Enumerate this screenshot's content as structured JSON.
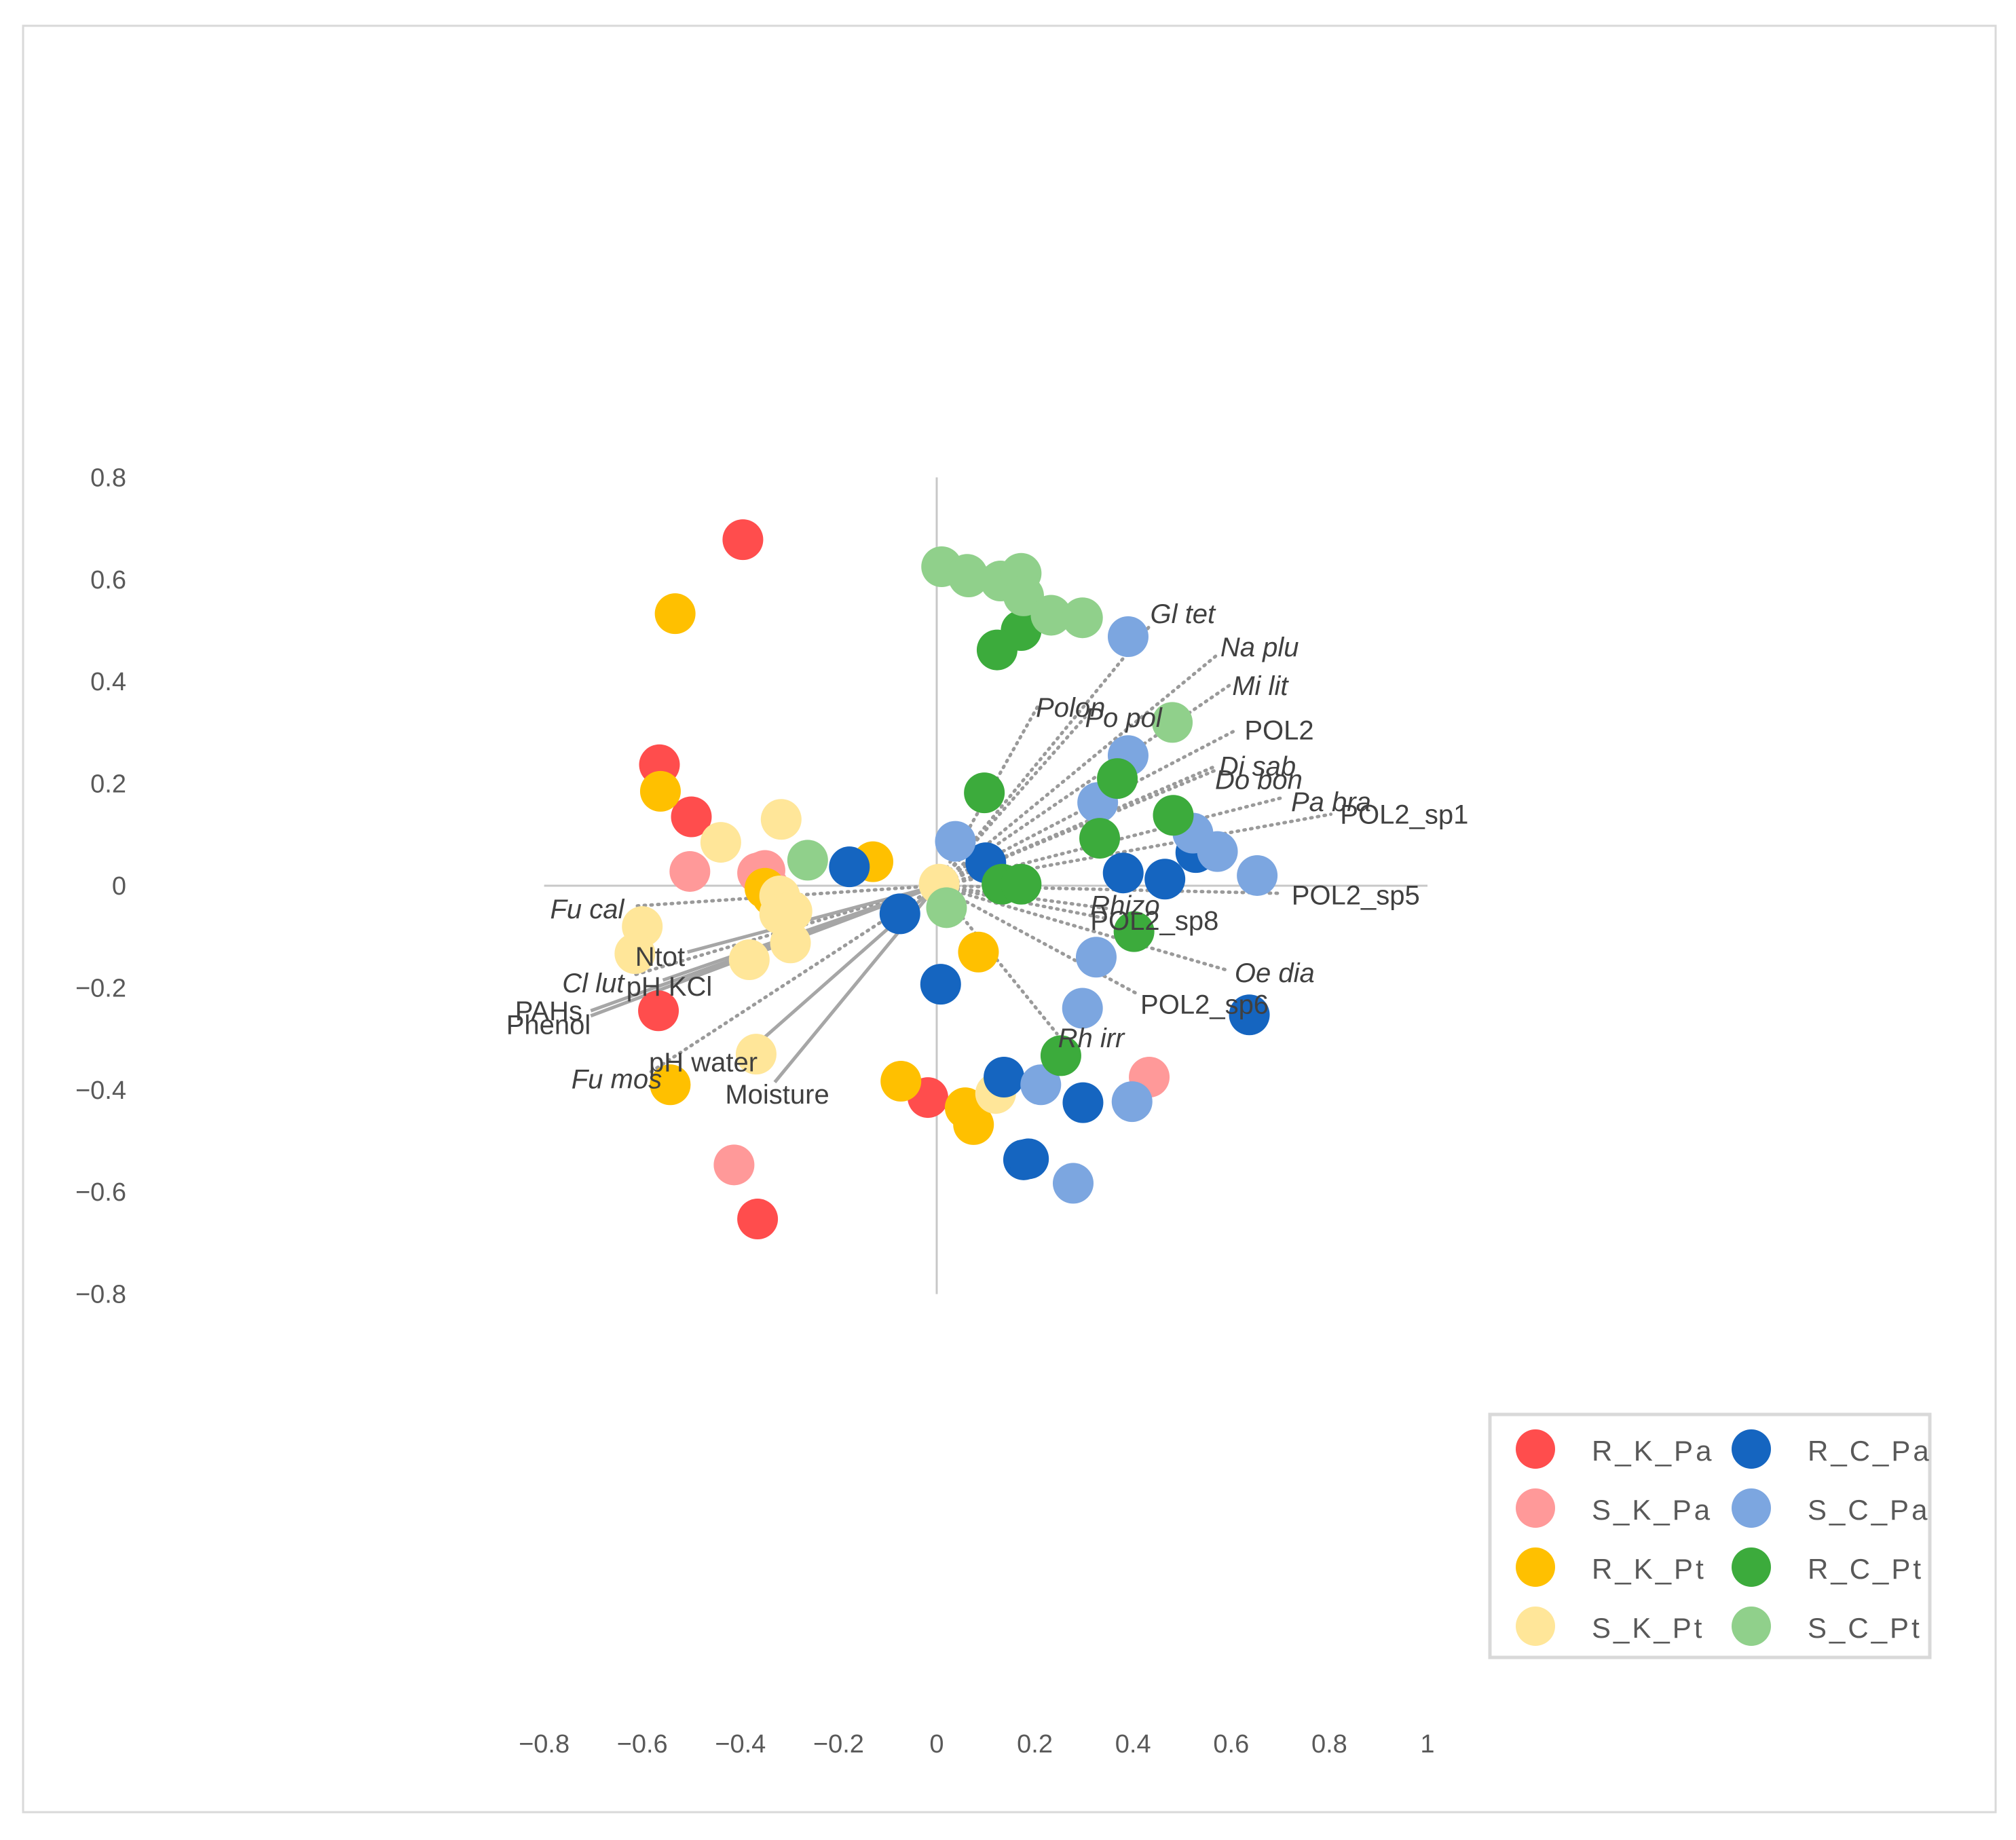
{
  "chart_data": {
    "type": "scatter",
    "title": "",
    "xlabel": "",
    "ylabel": "",
    "xlim": [
      -0.8,
      1
    ],
    "ylim": [
      -0.8,
      0.8
    ],
    "x_ticks": [
      "−0.8",
      "−0.6",
      "−0.4",
      "−0.2",
      "0",
      "0.2",
      "0.4",
      "0.6",
      "0.8",
      "1"
    ],
    "y_ticks": [
      "0.8",
      "0.6",
      "0.4",
      "0.2",
      "0",
      "−0.2",
      "−0.4",
      "−0.6",
      "−0.8"
    ],
    "grid": false,
    "legend_position": "bottom-right",
    "series": [
      {
        "name": "R_K_Pa",
        "color": "#ff4d4d",
        "points": [
          [
            -0.395,
            0.678
          ],
          [
            -0.565,
            0.237
          ],
          [
            -0.5,
            0.135
          ],
          [
            -0.567,
            -0.245
          ],
          [
            -0.365,
            -0.653
          ],
          [
            -0.018,
            -0.415
          ]
        ]
      },
      {
        "name": "S_K_Pa",
        "color": "#ff9999",
        "points": [
          [
            -0.503,
            0.028
          ],
          [
            -0.365,
            0.025
          ],
          [
            -0.358,
            0.027
          ],
          [
            -0.35,
            0.03
          ],
          [
            -0.342,
            -0.003
          ],
          [
            -0.413,
            -0.547
          ],
          [
            0.433,
            -0.375
          ]
        ]
      },
      {
        "name": "R_K_Pt",
        "color": "#ffc000",
        "points": [
          [
            -0.533,
            0.533
          ],
          [
            -0.563,
            0.185
          ],
          [
            -0.13,
            0.047
          ],
          [
            -0.35,
            -0.005
          ],
          [
            -0.335,
            -0.02
          ],
          [
            -0.543,
            -0.39
          ],
          [
            -0.073,
            -0.383
          ],
          [
            0.085,
            -0.13
          ],
          [
            0.058,
            -0.435
          ],
          [
            0.075,
            -0.468
          ]
        ]
      },
      {
        "name": "S_K_Pt",
        "color": "#ffe699",
        "points": [
          [
            -0.317,
            0.13
          ],
          [
            -0.44,
            0.085
          ],
          [
            -0.32,
            -0.02
          ],
          [
            -0.32,
            -0.055
          ],
          [
            -0.295,
            -0.05
          ],
          [
            -0.298,
            -0.112
          ],
          [
            -0.6,
            -0.08
          ],
          [
            -0.615,
            -0.133
          ],
          [
            -0.382,
            -0.145
          ],
          [
            -0.368,
            -0.33
          ],
          [
            0.12,
            -0.407
          ],
          [
            0.005,
            0.003
          ]
        ]
      },
      {
        "name": "R_C_Pa",
        "color": "#1565c0",
        "points": [
          [
            -0.178,
            0.037
          ],
          [
            -0.075,
            -0.055
          ],
          [
            0.1,
            0.045
          ],
          [
            0.38,
            0.025
          ],
          [
            0.465,
            0.013
          ],
          [
            0.528,
            0.065
          ],
          [
            0.637,
            -0.253
          ],
          [
            0.008,
            -0.193
          ],
          [
            0.137,
            -0.375
          ],
          [
            0.298,
            -0.425
          ],
          [
            0.177,
            -0.537
          ],
          [
            0.187,
            -0.535
          ]
        ]
      },
      {
        "name": "S_C_Pa",
        "color": "#7ca6e0",
        "points": [
          [
            0.038,
            0.087
          ],
          [
            0.39,
            0.488
          ],
          [
            0.39,
            0.255
          ],
          [
            0.328,
            0.163
          ],
          [
            0.522,
            0.103
          ],
          [
            0.572,
            0.067
          ],
          [
            0.653,
            0.02
          ],
          [
            0.325,
            -0.14
          ],
          [
            0.297,
            -0.24
          ],
          [
            0.212,
            -0.39
          ],
          [
            0.398,
            -0.423
          ],
          [
            0.278,
            -0.583
          ]
        ]
      },
      {
        "name": "R_C_Pt",
        "color": "#3cab3c",
        "points": [
          [
            0.172,
            0.5
          ],
          [
            0.123,
            0.462
          ],
          [
            0.097,
            0.182
          ],
          [
            0.368,
            0.21
          ],
          [
            0.482,
            0.138
          ],
          [
            0.332,
            0.093
          ],
          [
            0.133,
            0.003
          ],
          [
            0.172,
            0.003
          ],
          [
            0.402,
            -0.09
          ],
          [
            0.253,
            -0.333
          ]
        ]
      },
      {
        "name": "S_C_Pt",
        "color": "#90d08b",
        "points": [
          [
            0.01,
            0.625
          ],
          [
            0.062,
            0.61
          ],
          [
            0.065,
            0.605
          ],
          [
            0.13,
            0.597
          ],
          [
            0.172,
            0.612
          ],
          [
            0.177,
            0.568
          ],
          [
            0.233,
            0.53
          ],
          [
            0.297,
            0.525
          ],
          [
            0.48,
            0.32
          ],
          [
            -0.263,
            0.05
          ],
          [
            0.02,
            -0.043
          ]
        ]
      }
    ],
    "species_vectors": [
      {
        "label": "Gl tet",
        "italic": true,
        "end": [
          0.435,
          0.51
        ],
        "label_pos": [
          0.435,
          0.533
        ],
        "anchor": "start"
      },
      {
        "label": "Na plu",
        "italic": true,
        "end": [
          0.575,
          0.455
        ],
        "label_pos": [
          0.578,
          0.468
        ],
        "anchor": "start"
      },
      {
        "label": "Mi lit",
        "italic": true,
        "end": [
          0.6,
          0.395
        ],
        "label_pos": [
          0.602,
          0.392
        ],
        "anchor": "start"
      },
      {
        "label": "Polon",
        "italic": true,
        "end": [
          0.205,
          0.35
        ],
        "label_pos": [
          0.202,
          0.35
        ],
        "anchor": "start"
      },
      {
        "label": "Po pol",
        "italic": true,
        "end": [
          0.302,
          0.33
        ],
        "label_pos": [
          0.302,
          0.33
        ],
        "anchor": "start"
      },
      {
        "label": "POL2",
        "italic": false,
        "end": [
          0.61,
          0.305
        ],
        "label_pos": [
          0.627,
          0.305
        ],
        "anchor": "start"
      },
      {
        "label": "Di sab",
        "italic": true,
        "end": [
          0.57,
          0.235
        ],
        "label_pos": [
          0.575,
          0.235
        ],
        "anchor": "start"
      },
      {
        "label": "Do bon",
        "italic": true,
        "end": [
          0.565,
          0.225
        ],
        "label_pos": [
          0.567,
          0.208
        ],
        "anchor": "start"
      },
      {
        "label": "Pa bra",
        "italic": true,
        "end": [
          0.702,
          0.172
        ],
        "label_pos": [
          0.722,
          0.165
        ],
        "anchor": "start"
      },
      {
        "label": "POL2_sp1",
        "italic": false,
        "end": [
          0.803,
          0.14
        ],
        "label_pos": [
          0.822,
          0.14
        ],
        "anchor": "start"
      },
      {
        "label": "POL2_sp5",
        "italic": false,
        "end": [
          0.705,
          -0.015
        ],
        "label_pos": [
          0.723,
          -0.018
        ],
        "anchor": "start"
      },
      {
        "label": "Rhizo",
        "italic": true,
        "end": [
          0.35,
          -0.045
        ],
        "label_pos": [
          0.313,
          -0.038
        ],
        "anchor": "start"
      },
      {
        "label": "POL2_sp8",
        "italic": false,
        "end": [
          0.35,
          -0.065
        ],
        "label_pos": [
          0.313,
          -0.068
        ],
        "anchor": "start"
      },
      {
        "label": "Oe dia",
        "italic": true,
        "end": [
          0.59,
          -0.165
        ],
        "label_pos": [
          0.607,
          -0.17
        ],
        "anchor": "start"
      },
      {
        "label": "POL2_sp6",
        "italic": false,
        "end": [
          0.405,
          -0.21
        ],
        "label_pos": [
          0.415,
          -0.232
        ],
        "anchor": "start"
      },
      {
        "label": "Rh irr",
        "italic": true,
        "end": [
          0.245,
          -0.29
        ],
        "label_pos": [
          0.247,
          -0.298
        ],
        "anchor": "start"
      },
      {
        "label": "Fu cal",
        "italic": true,
        "end": [
          -0.618,
          -0.04
        ],
        "label_pos": [
          -0.637,
          -0.045
        ],
        "anchor": "end"
      },
      {
        "label": "Cl lut",
        "italic": true,
        "end": [
          -0.617,
          -0.175
        ],
        "label_pos": [
          -0.637,
          -0.19
        ],
        "anchor": "end"
      },
      {
        "label": "Fu mos",
        "italic": true,
        "end": [
          -0.583,
          -0.365
        ],
        "label_pos": [
          -0.56,
          -0.378
        ],
        "anchor": "end"
      }
    ],
    "env_vectors": [
      {
        "label": "Ntot",
        "end": [
          -0.508,
          -0.13
        ],
        "label_pos": [
          -0.513,
          -0.138
        ],
        "anchor": "end"
      },
      {
        "label": "pH KCl",
        "end": [
          -0.558,
          -0.185
        ],
        "label_pos": [
          -0.545,
          -0.197
        ],
        "anchor": "middle"
      },
      {
        "label": "PAHs",
        "end": [
          -0.705,
          -0.245
        ],
        "label_pos": [
          -0.722,
          -0.245
        ],
        "anchor": "end"
      },
      {
        "label": "Phenol",
        "end": [
          -0.705,
          -0.255
        ],
        "label_pos": [
          -0.705,
          -0.272
        ],
        "anchor": "end"
      },
      {
        "label": "pH water",
        "end": [
          -0.378,
          -0.32
        ],
        "label_pos": [
          -0.365,
          -0.345
        ],
        "anchor": "end"
      },
      {
        "label": "Moisture",
        "end": [
          -0.33,
          -0.385
        ],
        "label_pos": [
          -0.325,
          -0.408
        ],
        "anchor": "middle"
      }
    ]
  }
}
